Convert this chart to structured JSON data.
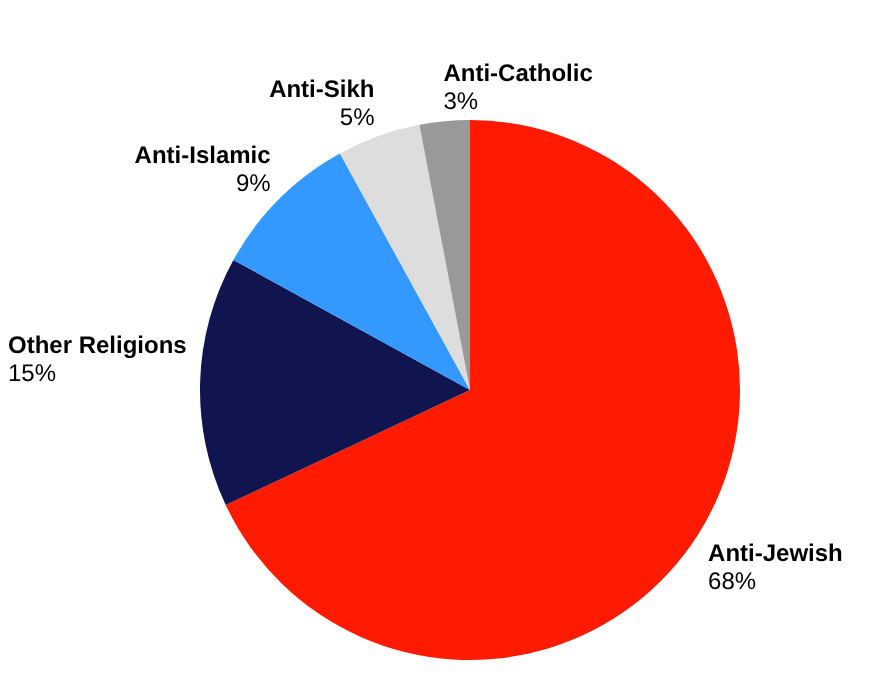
{
  "chart_data": {
    "type": "pie",
    "categories": [
      "Anti-Jewish",
      "Other Religions",
      "Anti-Islamic",
      "Anti-Sikh",
      "Anti-Catholic"
    ],
    "values": [
      68,
      15,
      9,
      5,
      3
    ],
    "value_labels": [
      "68%",
      "15%",
      "9%",
      "5%",
      "3%"
    ],
    "colors": [
      "#ff1a00",
      "#11154f",
      "#3399ff",
      "#dddddd",
      "#999999"
    ],
    "legend": false
  }
}
